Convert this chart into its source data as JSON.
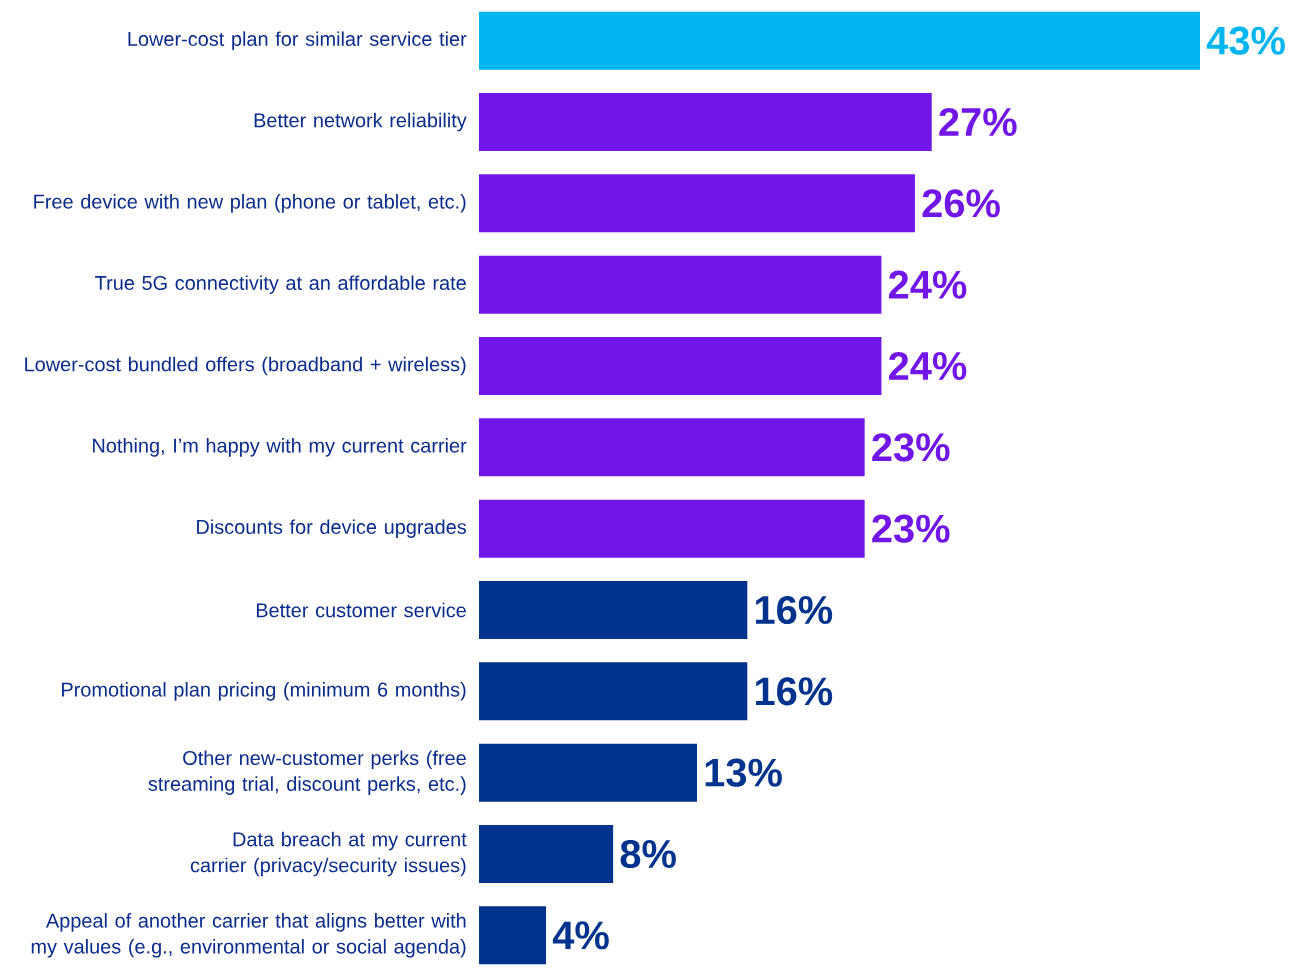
{
  "chart_data": {
    "type": "bar",
    "orientation": "horizontal",
    "categories": [
      "Lower-cost plan for similar service tier",
      "Better network reliability",
      "Free device with new plan (phone or tablet, etc.)",
      "True 5G connectivity at an affordable rate",
      "Lower-cost bundled offers (broadband + wireless)",
      "Nothing, I’m happy with my current carrier",
      "Discounts for device upgrades",
      "Better customer service",
      "Promotional plan pricing (minimum 6 months)",
      "Other new-customer perks (free streaming trial, discount perks, etc.)",
      "Data breach at my current carrier (privacy/security issues)",
      "Appeal of another carrier that aligns better with my values (e.g., environmental or social agenda)"
    ],
    "values": [
      43,
      27,
      26,
      24,
      24,
      23,
      23,
      16,
      16,
      13,
      8,
      4
    ],
    "value_labels": [
      "43%",
      "27%",
      "26%",
      "24%",
      "24%",
      "23%",
      "23%",
      "16%",
      "16%",
      "13%",
      "8%",
      "4%"
    ],
    "colors": [
      "#00b5f0",
      "#7216e8",
      "#7216e8",
      "#7216e8",
      "#7216e8",
      "#7216e8",
      "#7216e8",
      "#00338d",
      "#00338d",
      "#00338d",
      "#00338d",
      "#00338d"
    ]
  }
}
